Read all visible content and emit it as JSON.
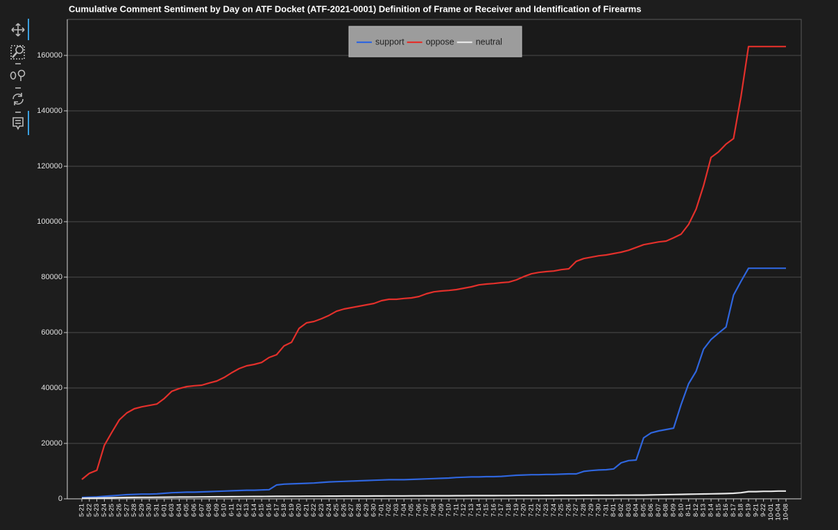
{
  "chart_data": {
    "type": "line",
    "title": "Cumulative Comment Sentiment by Day on ATF Docket (ATF-2021-0001) Definition of Frame or Receiver and Identification of Firearms",
    "categories": [
      "5-21",
      "5-22",
      "5-23",
      "5-24",
      "5-25",
      "5-26",
      "5-27",
      "5-28",
      "5-29",
      "5-30",
      "5-31",
      "6-01",
      "6-03",
      "6-04",
      "6-05",
      "6-06",
      "6-07",
      "6-08",
      "6-09",
      "6-10",
      "6-11",
      "6-12",
      "6-13",
      "6-14",
      "6-15",
      "6-16",
      "6-17",
      "6-18",
      "6-19",
      "6-20",
      "6-21",
      "6-22",
      "6-23",
      "6-24",
      "6-25",
      "6-26",
      "6-27",
      "6-28",
      "6-29",
      "6-30",
      "7-01",
      "7-02",
      "7-03",
      "7-04",
      "7-05",
      "7-06",
      "7-07",
      "7-08",
      "7-09",
      "7-10",
      "7-11",
      "7-12",
      "7-13",
      "7-14",
      "7-15",
      "7-16",
      "7-17",
      "7-18",
      "7-19",
      "7-20",
      "7-21",
      "7-22",
      "7-23",
      "7-24",
      "7-25",
      "7-26",
      "7-27",
      "7-28",
      "7-29",
      "7-30",
      "7-31",
      "8-01",
      "8-02",
      "8-03",
      "8-04",
      "8-05",
      "8-06",
      "8-07",
      "8-08",
      "8-09",
      "8-10",
      "8-11",
      "8-12",
      "8-13",
      "8-14",
      "8-15",
      "8-16",
      "8-17",
      "8-18",
      "8-19",
      "9-21",
      "9-22",
      "10-01",
      "10-04",
      "10-08"
    ],
    "series": [
      {
        "name": "support",
        "color": "#2f66de",
        "values": [
          500,
          600,
          700,
          900,
          1100,
          1300,
          1500,
          1600,
          1700,
          1700,
          1800,
          2000,
          2200,
          2300,
          2400,
          2400,
          2500,
          2600,
          2700,
          2800,
          2900,
          3000,
          3100,
          3100,
          3200,
          3300,
          5000,
          5300,
          5400,
          5500,
          5600,
          5700,
          5900,
          6100,
          6200,
          6300,
          6400,
          6500,
          6600,
          6700,
          6800,
          6900,
          6900,
          6900,
          7000,
          7100,
          7200,
          7300,
          7400,
          7500,
          7700,
          7800,
          7900,
          7900,
          8000,
          8000,
          8100,
          8300,
          8500,
          8600,
          8700,
          8700,
          8800,
          8800,
          8900,
          9000,
          9000,
          9900,
          10200,
          10400,
          10500,
          10800,
          13000,
          13800,
          14000,
          22000,
          23800,
          24500,
          25000,
          25500,
          34000,
          41500,
          46000,
          54000,
          57500,
          59800,
          62000,
          73500,
          78500,
          83200,
          83200,
          83200,
          83200,
          83200,
          83200
        ]
      },
      {
        "name": "oppose",
        "color": "#e3302b",
        "values": [
          7000,
          9200,
          10300,
          19300,
          24000,
          28500,
          31000,
          32500,
          33200,
          33700,
          34200,
          36200,
          38800,
          39800,
          40500,
          40800,
          41000,
          41800,
          42500,
          43800,
          45500,
          47000,
          48000,
          48500,
          49200,
          51000,
          52000,
          55200,
          56500,
          61500,
          63500,
          64000,
          65000,
          66200,
          67700,
          68500,
          69000,
          69500,
          70000,
          70500,
          71500,
          72000,
          72000,
          72300,
          72500,
          73000,
          74000,
          74700,
          75000,
          75200,
          75500,
          76000,
          76500,
          77200,
          77500,
          77700,
          78000,
          78200,
          79000,
          80200,
          81200,
          81700,
          82000,
          82200,
          82700,
          83000,
          85700,
          86700,
          87200,
          87700,
          88000,
          88500,
          89000,
          89700,
          90700,
          91700,
          92200,
          92700,
          93000,
          94200,
          95500,
          99000,
          104500,
          113000,
          123200,
          125200,
          128000,
          130000,
          145200,
          163200,
          163200,
          163200,
          163200,
          163200,
          163200
        ]
      },
      {
        "name": "neutral",
        "color": "#e6e6e6",
        "values": [
          200,
          250,
          300,
          350,
          400,
          450,
          500,
          520,
          540,
          560,
          580,
          600,
          620,
          640,
          660,
          680,
          700,
          720,
          740,
          760,
          780,
          800,
          820,
          840,
          860,
          880,
          900,
          910,
          920,
          930,
          940,
          950,
          960,
          970,
          980,
          990,
          1000,
          1000,
          1010,
          1020,
          1030,
          1040,
          1050,
          1060,
          1070,
          1080,
          1090,
          1100,
          1100,
          1110,
          1120,
          1130,
          1140,
          1150,
          1150,
          1160,
          1170,
          1180,
          1190,
          1200,
          1200,
          1210,
          1220,
          1230,
          1240,
          1250,
          1260,
          1270,
          1280,
          1290,
          1300,
          1310,
          1320,
          1330,
          1340,
          1350,
          1400,
          1450,
          1500,
          1550,
          1600,
          1650,
          1700,
          1750,
          1800,
          1850,
          1900,
          2000,
          2200,
          2600,
          2600,
          2700,
          2700,
          2800,
          2800
        ]
      }
    ],
    "ylim": [
      0,
      173000
    ],
    "yticks": [
      0,
      20000,
      40000,
      60000,
      80000,
      100000,
      120000,
      140000,
      160000
    ],
    "grid": true,
    "legend": "top"
  }
}
